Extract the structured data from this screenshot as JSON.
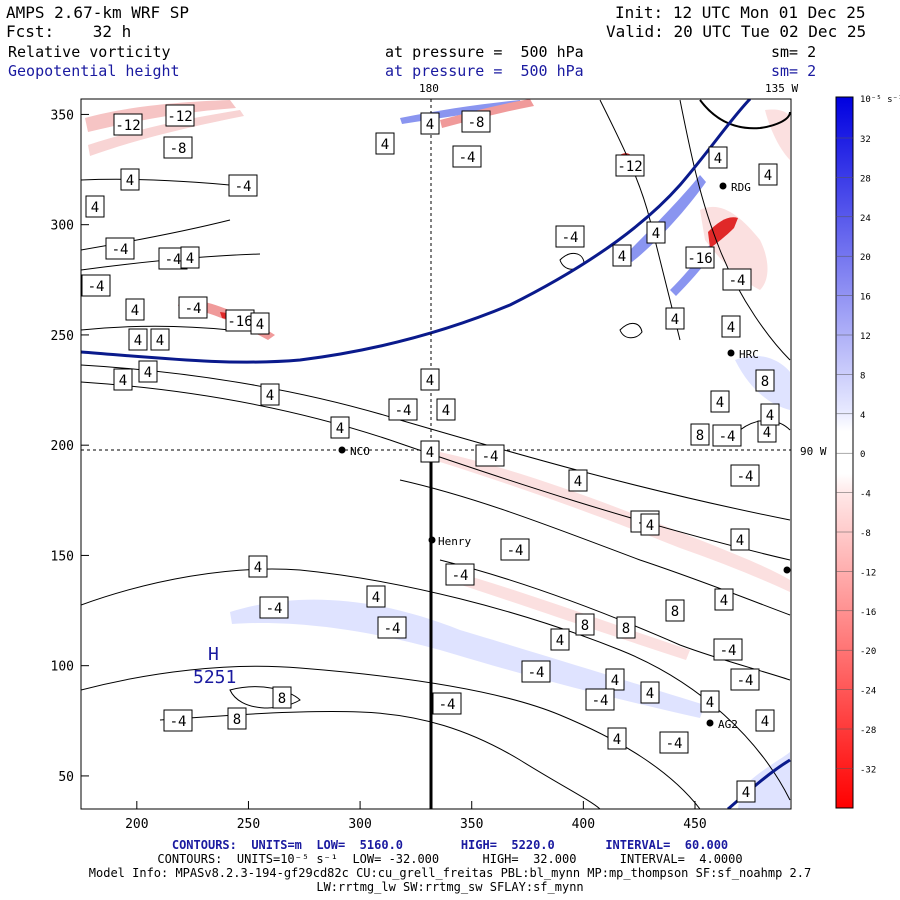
{
  "header": {
    "model": "AMPS 2.67-km WRF SP",
    "fcst_label": "Fcst:",
    "fcst_value": "32 h",
    "init_label": "Init:",
    "init_value": "12 UTC Mon 01 Dec 25",
    "valid_label": "Valid:",
    "valid_value": "20 UTC Tue 02 Dec 25",
    "field1_name": "Relative vorticity",
    "field1_level": "at pressure =  500 hPa",
    "field1_sm": "sm= 2",
    "field2_name": "Geopotential height",
    "field2_level": "at pressure =  500 hPa",
    "field2_sm": "sm= 2"
  },
  "meridian_labels": {
    "top_180": "180",
    "top_135w": "135 W",
    "right_90w": "90 W"
  },
  "axes": {
    "x_ticks": [
      "200",
      "250",
      "300",
      "350",
      "400",
      "450"
    ],
    "y_ticks": [
      "350",
      "300",
      "250",
      "200",
      "150",
      "100",
      "50"
    ],
    "xlim": [
      175,
      493
    ],
    "ylim": [
      35,
      357
    ]
  },
  "colorbar": {
    "unit": "10⁻⁵ s⁻¹",
    "levels": [
      "32",
      "28",
      "24",
      "20",
      "16",
      "12",
      "8",
      "4",
      "0",
      "-4",
      "-8",
      "-12",
      "-16",
      "-20",
      "-24",
      "-28",
      "-32"
    ],
    "colors_high": "#0000e0",
    "colors_low": "#ff0000"
  },
  "stations": [
    {
      "name": "RDG"
    },
    {
      "name": "HRC"
    },
    {
      "name": "NCO"
    },
    {
      "name": "Henry"
    },
    {
      "name": "AG2"
    }
  ],
  "high_center": {
    "letter": "H",
    "value": "5251"
  },
  "contour_labels": [
    "-12",
    "-12",
    "-8",
    "4",
    "4",
    "-4",
    "4",
    "-4",
    "4",
    "-4",
    "-4",
    "-4",
    "4",
    "4",
    "-16",
    "-4",
    "4",
    "4",
    "4",
    "4",
    "-8",
    "4",
    "-12",
    "4",
    "-16",
    "-4",
    "4",
    "4",
    "-4",
    "4",
    "4",
    "-4",
    "4",
    "-4",
    "4",
    "4",
    "8",
    "4",
    "4",
    "-4",
    "-4",
    "-4",
    "4",
    "-4",
    "4",
    "-4",
    "4",
    "4",
    "-4",
    "-4",
    "-4",
    "4",
    "4",
    "8",
    "8",
    "8",
    "4",
    "-4",
    "-4",
    "-4",
    "8",
    "8",
    "-4",
    "4",
    "-4",
    "4",
    "4",
    "4",
    "4",
    "4",
    "4",
    "4",
    "4",
    "8",
    "4",
    "4",
    "-4"
  ],
  "footer": {
    "line1_a": "CONTOURS:  UNITS=m  LOW=  5160.0",
    "line1_b": "HIGH=  5220.0",
    "line1_c": "INTERVAL=  60.000",
    "line2_a": "CONTOURS:  UNITS=10⁻⁵ s⁻¹  LOW= -32.000",
    "line2_b": "HIGH=  32.000",
    "line2_c": "INTERVAL=  4.0000",
    "line3": "Model Info: MPASv8.2.3-194-gf29cd82c CU:cu_grell_freitas PBL:bl_mynn MP:mp_thompson SF:sf_noahmp 2.7",
    "line4": "LW:rrtmg_lw SW:rrtmg_sw SFLAY:sf_mynn"
  }
}
